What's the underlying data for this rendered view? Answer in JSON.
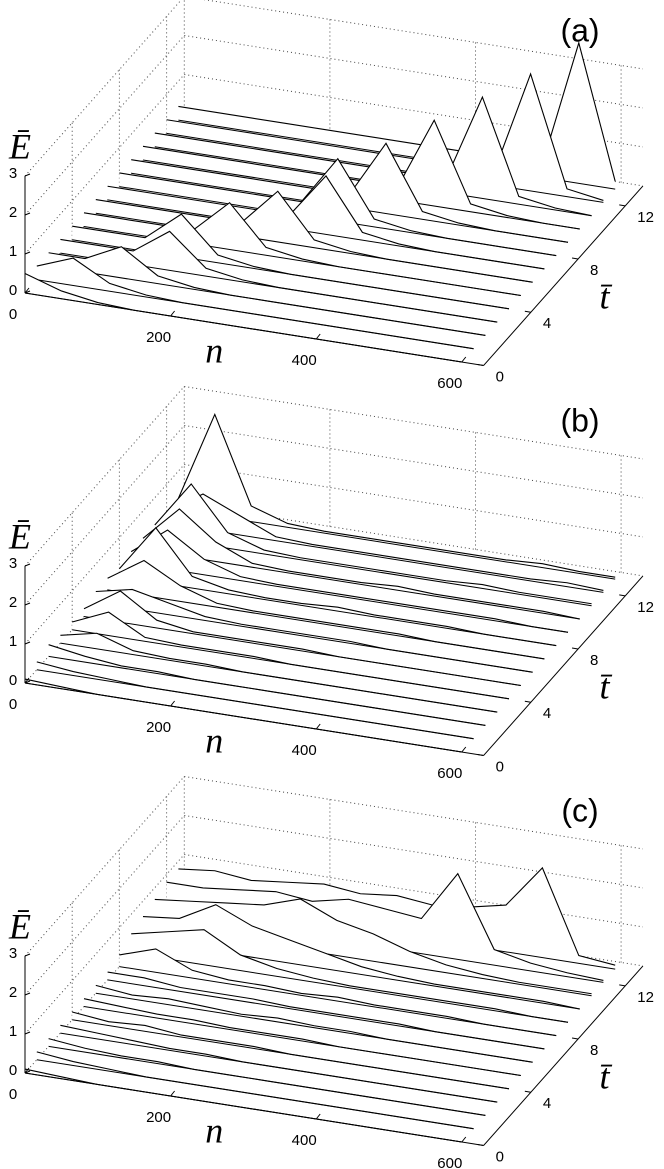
{
  "chart_data": [
    {
      "type": "waterfall",
      "label": "(a)",
      "xlabel": "n",
      "ylabel": "t̄",
      "zlabel": "Ē",
      "xlim": [
        0,
        630
      ],
      "ylim": [
        0,
        13.5
      ],
      "zlim": [
        0,
        3
      ],
      "xticks": [
        0,
        200,
        400,
        600
      ],
      "yticks": [
        0,
        4,
        8,
        12
      ],
      "zticks": [
        0,
        1,
        2,
        3
      ],
      "grid": true,
      "color": "#000000",
      "x": [
        0,
        50,
        100,
        150,
        200,
        250,
        300,
        350,
        400,
        450,
        500,
        550,
        600
      ],
      "series": [
        {
          "t": 0,
          "values": [
            0.5,
            0.2,
            0.05,
            0,
            0,
            0,
            0,
            0,
            0,
            0,
            0,
            0,
            0
          ]
        },
        {
          "t": 1,
          "values": [
            0.35,
            0.7,
            0.2,
            0.05,
            0,
            0,
            0,
            0,
            0,
            0,
            0,
            0,
            0
          ]
        },
        {
          "t": 2,
          "values": [
            0.35,
            0.35,
            0.8,
            0.2,
            0.05,
            0,
            0,
            0,
            0,
            0,
            0,
            0,
            0
          ]
        },
        {
          "t": 3,
          "values": [
            0.35,
            0.35,
            0.35,
            1,
            0.2,
            0.05,
            0,
            0,
            0,
            0,
            0,
            0,
            0
          ]
        },
        {
          "t": 4,
          "values": [
            0.35,
            0.35,
            0.35,
            1.1,
            0.2,
            0.05,
            0,
            0,
            0,
            0,
            0,
            0,
            0
          ]
        },
        {
          "t": 5,
          "values": [
            0.35,
            0.35,
            0.35,
            0.35,
            1.2,
            0.2,
            0.05,
            0,
            0,
            0,
            0,
            0,
            0
          ]
        },
        {
          "t": 6,
          "values": [
            0.35,
            0.35,
            0.35,
            0.35,
            0.35,
            1.3,
            0.2,
            0.05,
            0,
            0,
            0,
            0,
            0
          ]
        },
        {
          "t": 7,
          "values": [
            0.35,
            0.35,
            0.35,
            0.35,
            0.35,
            0.35,
            1.5,
            0.2,
            0.05,
            0,
            0,
            0,
            0
          ]
        },
        {
          "t": 8,
          "values": [
            0.35,
            0.35,
            0.35,
            0.35,
            0.35,
            0.35,
            1.6,
            0.2,
            0.05,
            0,
            0,
            0,
            0
          ]
        },
        {
          "t": 9,
          "values": [
            0.35,
            0.35,
            0.35,
            0.35,
            0.35,
            0.35,
            0.35,
            1.8,
            0.2,
            0.05,
            0,
            0,
            0
          ]
        },
        {
          "t": 10,
          "values": [
            0.35,
            0.35,
            0.35,
            0.35,
            0.35,
            0.35,
            0.35,
            0.35,
            2.2,
            0.2,
            0.05,
            0,
            0
          ]
        },
        {
          "t": 11,
          "values": [
            0.35,
            0.35,
            0.35,
            0.35,
            0.35,
            0.35,
            0.35,
            0.35,
            0.35,
            2.6,
            0.2,
            0.05,
            0
          ]
        },
        {
          "t": 12,
          "values": [
            0.35,
            0.35,
            0.35,
            0.35,
            0.35,
            0.35,
            0.35,
            0.35,
            0.35,
            0.35,
            3,
            0.2,
            0.05
          ]
        },
        {
          "t": 13,
          "values": [
            0.35,
            0.35,
            0.35,
            0.35,
            0.35,
            0.35,
            0.35,
            0.35,
            0.35,
            0.35,
            0.35,
            3.6,
            0.2
          ]
        }
      ]
    },
    {
      "type": "waterfall",
      "label": "(b)",
      "xlabel": "n",
      "ylabel": "t̄",
      "zlabel": "Ē",
      "xlim": [
        0,
        630
      ],
      "ylim": [
        0,
        13.5
      ],
      "zlim": [
        0,
        3
      ],
      "xticks": [
        0,
        200,
        400,
        600
      ],
      "yticks": [
        0,
        4,
        8,
        12
      ],
      "zticks": [
        0,
        1,
        2,
        3
      ],
      "grid": true,
      "color": "#000000",
      "x": [
        0,
        50,
        100,
        150,
        200,
        250,
        300,
        350,
        400,
        450,
        500,
        550,
        600
      ],
      "series": [
        {
          "t": 0,
          "values": [
            0.1,
            0.05,
            0,
            0,
            0,
            0,
            0,
            0,
            0,
            0,
            0,
            0,
            0
          ]
        },
        {
          "t": 1,
          "values": [
            0.2,
            0.1,
            0.05,
            0,
            0,
            0,
            0,
            0,
            0,
            0,
            0,
            0,
            0
          ]
        },
        {
          "t": 2,
          "values": [
            0.3,
            0.15,
            0.05,
            0.05,
            0,
            0,
            0,
            0,
            0,
            0,
            0,
            0,
            0
          ]
        },
        {
          "t": 3,
          "values": [
            0.2,
            0.4,
            0.1,
            0.05,
            0.05,
            0,
            0,
            0,
            0,
            0,
            0,
            0,
            0
          ]
        },
        {
          "t": 4,
          "values": [
            0.2,
            0.6,
            0.1,
            0.05,
            0.05,
            0.05,
            0,
            0,
            0,
            0,
            0,
            0,
            0
          ]
        },
        {
          "t": 5,
          "values": [
            0.2,
            0.8,
            0.2,
            0.05,
            0.05,
            0.05,
            0.05,
            0,
            0,
            0,
            0,
            0,
            0
          ]
        },
        {
          "t": 6,
          "values": [
            0.3,
            0.5,
            0.3,
            0.1,
            0.05,
            0.05,
            0.05,
            0.05,
            0,
            0,
            0,
            0,
            0
          ]
        },
        {
          "t": 7,
          "values": [
            0.3,
            0.9,
            0.4,
            0.1,
            0.05,
            0.05,
            0.05,
            0.05,
            0.05,
            0,
            0,
            0,
            0
          ]
        },
        {
          "t": 8,
          "values": [
            0.2,
            1.4,
            0.3,
            0.1,
            0.05,
            0.05,
            0.1,
            0.05,
            0.05,
            0.05,
            0,
            0,
            0
          ]
        },
        {
          "t": 9,
          "values": [
            0.3,
            1,
            0.4,
            0.1,
            0.05,
            0.05,
            0.05,
            0.05,
            0.05,
            0.05,
            0.05,
            0,
            0
          ]
        },
        {
          "t": 10,
          "values": [
            0.3,
            1.2,
            0.5,
            0.1,
            0.05,
            0.05,
            0.05,
            0.1,
            0.05,
            0.05,
            0.05,
            0.05,
            0
          ]
        },
        {
          "t": 11,
          "values": [
            0.3,
            1.5,
            0.4,
            0.1,
            0.05,
            0.05,
            0.05,
            0.05,
            0.05,
            0.1,
            0.05,
            0.05,
            0.05
          ]
        },
        {
          "t": 12,
          "values": [
            0.3,
            0.9,
            0.5,
            0.1,
            0.05,
            0.05,
            0.05,
            0.05,
            0.05,
            0.05,
            0.05,
            0.1,
            0.05
          ]
        },
        {
          "t": 13,
          "values": [
            0.3,
            2.6,
            0.4,
            0.1,
            0.05,
            0.05,
            0.05,
            0.05,
            0.05,
            0.05,
            0.1,
            0.05,
            0.05
          ]
        }
      ]
    },
    {
      "type": "waterfall",
      "label": "(c)",
      "xlabel": "n",
      "ylabel": "t̄",
      "zlabel": "Ē",
      "xlim": [
        0,
        630
      ],
      "ylim": [
        0,
        13.5
      ],
      "zlim": [
        0,
        3
      ],
      "xticks": [
        0,
        200,
        400,
        600
      ],
      "yticks": [
        0,
        4,
        8,
        12
      ],
      "zticks": [
        0,
        1,
        2,
        3
      ],
      "grid": true,
      "color": "#000000",
      "x": [
        0,
        50,
        100,
        150,
        200,
        250,
        300,
        350,
        400,
        450,
        500,
        550,
        600
      ],
      "series": [
        {
          "t": 0,
          "values": [
            0.1,
            0.05,
            0,
            0,
            0,
            0,
            0,
            0,
            0,
            0,
            0,
            0,
            0
          ]
        },
        {
          "t": 1,
          "values": [
            0.2,
            0.1,
            0.05,
            0,
            0,
            0,
            0,
            0,
            0,
            0,
            0,
            0,
            0
          ]
        },
        {
          "t": 2,
          "values": [
            0.2,
            0.1,
            0.05,
            0.05,
            0,
            0,
            0,
            0,
            0,
            0,
            0,
            0,
            0
          ]
        },
        {
          "t": 3,
          "values": [
            0.2,
            0.15,
            0.1,
            0.05,
            0.05,
            0,
            0,
            0,
            0,
            0,
            0,
            0,
            0
          ]
        },
        {
          "t": 4,
          "values": [
            0.2,
            0.1,
            0.15,
            0.05,
            0.05,
            0.05,
            0,
            0,
            0,
            0,
            0,
            0,
            0
          ]
        },
        {
          "t": 5,
          "values": [
            0.2,
            0.15,
            0.1,
            0.1,
            0.05,
            0.05,
            0.05,
            0,
            0,
            0,
            0,
            0,
            0
          ]
        },
        {
          "t": 6,
          "values": [
            0.2,
            0.1,
            0.15,
            0.1,
            0.05,
            0.1,
            0.05,
            0.05,
            0,
            0,
            0,
            0,
            0
          ]
        },
        {
          "t": 7,
          "values": [
            0.2,
            0.2,
            0.1,
            0.1,
            0.1,
            0.05,
            0.05,
            0.05,
            0.05,
            0,
            0,
            0,
            0
          ]
        },
        {
          "t": 8,
          "values": [
            0.3,
            0.6,
            0.2,
            0.1,
            0.1,
            0.05,
            0.1,
            0.05,
            0.05,
            0.05,
            0,
            0,
            0
          ]
        },
        {
          "t": 9,
          "values": [
            0.5,
            0.7,
            0.9,
            0.4,
            0.2,
            0.1,
            0.05,
            0.05,
            0.05,
            0.05,
            0.05,
            0,
            0
          ]
        },
        {
          "t": 10,
          "values": [
            0.6,
            0.7,
            1.2,
            0.8,
            0.6,
            0.4,
            0.2,
            0.1,
            0.05,
            0.05,
            0.05,
            0.05,
            0
          ]
        },
        {
          "t": 11,
          "values": [
            0.7,
            0.8,
            0.9,
            1,
            1.3,
            0.9,
            0.7,
            0.4,
            0.2,
            0.1,
            0.05,
            0.05,
            0.05
          ]
        },
        {
          "t": 12,
          "values": [
            0.8,
            0.8,
            0.9,
            1,
            0.9,
            1.1,
            1,
            0.9,
            2.2,
            0.4,
            0.2,
            0.1,
            0.05
          ]
        },
        {
          "t": 13,
          "values": [
            0.8,
            0.9,
            0.8,
            0.9,
            1,
            0.9,
            1,
            0.9,
            1,
            1.2,
            2.3,
            0.2,
            0.1
          ]
        }
      ]
    }
  ]
}
